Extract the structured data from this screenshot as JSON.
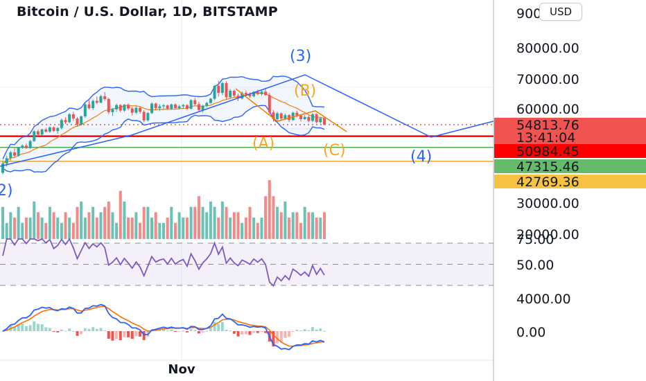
{
  "header": {
    "title": "Bitcoin / U.S. Dollar, 1D, BITSTAMP",
    "currency_button": "USD"
  },
  "colors": {
    "up": "#26a69a",
    "down": "#ef5350",
    "bollinger": "#2962ff",
    "ma": "#f57c00",
    "rsi": "#7e57c2",
    "macd": "#2962ff",
    "signal": "#ff6d00",
    "support_red": "#ff0000",
    "support_green": "#4caf50",
    "support_yellow": "#f5a623"
  },
  "chart_data": {
    "type": "candlestick",
    "title": "Bitcoin / U.S. Dollar, 1D, BITSTAMP",
    "x_tick_labels": [
      "Nov"
    ],
    "price_axis_labels": [
      "90000.00",
      "80000.00",
      "70000.00",
      "60000.00",
      "30000.00",
      "20000.00"
    ],
    "price_tags": [
      {
        "value": "54813.76",
        "sub": "13:41:04",
        "color": "#f05350"
      },
      {
        "value": "50984.45",
        "color": "#ff0000"
      },
      {
        "value": "47315.46",
        "color": "#66bb6a"
      },
      {
        "value": "42769.36",
        "color": "#f5c242"
      }
    ],
    "horizontal_levels": [
      {
        "price": 50984.45,
        "color": "#ff0000",
        "style": "solid"
      },
      {
        "price": 47315.46,
        "color": "#4caf50",
        "style": "solid"
      },
      {
        "price": 42769.36,
        "color": "#f5a623",
        "style": "solid"
      },
      {
        "price": 54813.76,
        "color": "#ef5350",
        "style": "dotted"
      }
    ],
    "wave_labels": [
      {
        "text": "(3)",
        "color": "#2962ff"
      },
      {
        "text": "(4)",
        "color": "#2962ff"
      },
      {
        "text": "2)",
        "color": "#2962ff"
      },
      {
        "text": "(A)",
        "color": "#f5a623"
      },
      {
        "text": "(B)",
        "color": "#f5a623"
      },
      {
        "text": "(C)",
        "color": "#f5a623"
      }
    ],
    "candles": [
      [
        39000,
        43000,
        38500,
        42000
      ],
      [
        42000,
        44500,
        41000,
        43800
      ],
      [
        43800,
        46200,
        43000,
        45700
      ],
      [
        45700,
        47000,
        44000,
        44600
      ],
      [
        44600,
        47500,
        44200,
        47200
      ],
      [
        47200,
        48300,
        46800,
        47900
      ],
      [
        47900,
        48600,
        46800,
        47100
      ],
      [
        47100,
        49800,
        46900,
        49400
      ],
      [
        49400,
        53000,
        49100,
        52600
      ],
      [
        52600,
        53200,
        51000,
        51500
      ],
      [
        51500,
        53500,
        51300,
        53200
      ],
      [
        53200,
        53700,
        52200,
        52500
      ],
      [
        52500,
        54200,
        52000,
        53900
      ],
      [
        53900,
        54200,
        52400,
        52700
      ],
      [
        52700,
        54000,
        51800,
        53700
      ],
      [
        53700,
        56800,
        53200,
        56300
      ],
      [
        56300,
        57200,
        55000,
        55600
      ],
      [
        55600,
        58600,
        55200,
        58200
      ],
      [
        58200,
        59000,
        56000,
        56800
      ],
      [
        56800,
        57300,
        54100,
        54800
      ],
      [
        54800,
        57800,
        54500,
        57500
      ],
      [
        57500,
        62000,
        57000,
        61400
      ],
      [
        61400,
        62800,
        59800,
        60200
      ],
      [
        60200,
        63000,
        59600,
        62600
      ],
      [
        62600,
        64000,
        61500,
        62000
      ],
      [
        62000,
        64600,
        61800,
        64100
      ],
      [
        64100,
        65500,
        62600,
        63200
      ],
      [
        63200,
        63600,
        58200,
        58900
      ],
      [
        58900,
        60200,
        57600,
        59800
      ],
      [
        59800,
        61700,
        59000,
        61200
      ],
      [
        61200,
        61600,
        58800,
        59400
      ],
      [
        59400,
        61600,
        59000,
        61300
      ],
      [
        61300,
        61800,
        59500,
        60100
      ],
      [
        60100,
        60600,
        57800,
        58700
      ],
      [
        58700,
        60800,
        58300,
        60300
      ],
      [
        60300,
        60900,
        58400,
        59000
      ],
      [
        59000,
        59600,
        55600,
        56200
      ],
      [
        56200,
        59000,
        55800,
        58600
      ],
      [
        58600,
        62100,
        58200,
        61700
      ],
      [
        61700,
        62000,
        59500,
        60200
      ],
      [
        60200,
        61500,
        59200,
        60800
      ],
      [
        60800,
        61600,
        59900,
        61100
      ],
      [
        61100,
        61400,
        59600,
        60000
      ],
      [
        60000,
        61700,
        59600,
        61400
      ],
      [
        61400,
        61800,
        59800,
        60200
      ],
      [
        60200,
        61300,
        59800,
        60800
      ],
      [
        60800,
        61600,
        60000,
        61200
      ],
      [
        61200,
        61500,
        59600,
        60000
      ],
      [
        60000,
        63100,
        59800,
        62800
      ],
      [
        62800,
        63500,
        61000,
        61500
      ],
      [
        61500,
        62300,
        59000,
        59600
      ],
      [
        59600,
        61300,
        58800,
        61000
      ],
      [
        61000,
        62300,
        60400,
        61900
      ],
      [
        61900,
        63600,
        61500,
        63300
      ],
      [
        63300,
        67800,
        62800,
        67500
      ],
      [
        67500,
        69200,
        64000,
        65200
      ],
      [
        65200,
        68800,
        64500,
        68400
      ],
      [
        68400,
        69000,
        63000,
        63800
      ],
      [
        63800,
        66500,
        63300,
        65900
      ],
      [
        65900,
        66300,
        63800,
        64300
      ],
      [
        64300,
        65000,
        62500,
        63400
      ],
      [
        63400,
        65700,
        63000,
        65200
      ],
      [
        65200,
        66000,
        64100,
        64700
      ],
      [
        64700,
        65400,
        63600,
        64100
      ],
      [
        64100,
        65800,
        63800,
        65500
      ],
      [
        65500,
        66300,
        64400,
        64800
      ],
      [
        64800,
        66000,
        64300,
        65600
      ],
      [
        65600,
        66600,
        64200,
        64500
      ],
      [
        64500,
        65200,
        58200,
        58800
      ],
      [
        58800,
        59600,
        55800,
        56600
      ],
      [
        56600,
        59000,
        56100,
        58500
      ],
      [
        58500,
        58800,
        56000,
        56800
      ],
      [
        56800,
        58400,
        56300,
        57900
      ],
      [
        57900,
        58200,
        55600,
        56300
      ],
      [
        56300,
        59000,
        56000,
        58700
      ],
      [
        58700,
        59400,
        57300,
        57800
      ],
      [
        57800,
        58200,
        55800,
        56600
      ],
      [
        56600,
        57900,
        56300,
        57300
      ],
      [
        57300,
        57800,
        55500,
        56000
      ],
      [
        56000,
        58600,
        55600,
        58200
      ],
      [
        58200,
        58500,
        55200,
        55600
      ],
      [
        55600,
        57200,
        55200,
        56900
      ],
      [
        56900,
        57300,
        54600,
        54800
      ]
    ],
    "volume": [
      6,
      3,
      5,
      4,
      6,
      3,
      4,
      4,
      7,
      5,
      4,
      3,
      6,
      5,
      4,
      3,
      5,
      4,
      3,
      6,
      7,
      4,
      5,
      6,
      4,
      5,
      6,
      7,
      5,
      3,
      9,
      7,
      4,
      4,
      5,
      3,
      6,
      6,
      4,
      5,
      3,
      3,
      4,
      6,
      3,
      5,
      4,
      4,
      6,
      6,
      8,
      6,
      5,
      7,
      6,
      4,
      7,
      6,
      4,
      5,
      5,
      3,
      4,
      6,
      4,
      3,
      4,
      8,
      11,
      8,
      6,
      5,
      7,
      4,
      5,
      5,
      3,
      6,
      5,
      5,
      4,
      4,
      5
    ],
    "rsi_axis_labels": [
      "75.00",
      "50.00"
    ],
    "rsi_levels": [
      75,
      50,
      25
    ],
    "macd_axis_labels": [
      "4000.00",
      "0.00"
    ]
  }
}
